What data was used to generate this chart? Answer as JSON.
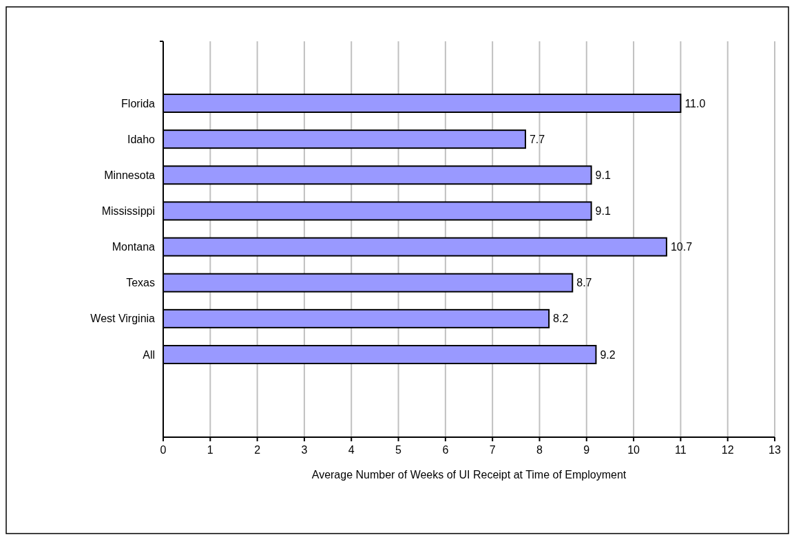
{
  "chart_data": {
    "type": "bar",
    "orientation": "horizontal",
    "xlabel": "Average Number of Weeks of UI Receipt at Time of Employment",
    "categories": [
      "Florida",
      "Idaho",
      "Minnesota",
      "Mississippi",
      "Montana",
      "Texas",
      "West Virginia",
      "All"
    ],
    "values": [
      11.0,
      7.7,
      9.1,
      9.1,
      10.7,
      8.7,
      8.2,
      9.2
    ],
    "value_labels": [
      "11.0",
      "7.7",
      "9.1",
      "9.1",
      "10.7",
      "8.7",
      "8.2",
      "9.2"
    ],
    "color": "#9999ff",
    "xlim": [
      0,
      13
    ],
    "xticks": [
      0,
      1,
      2,
      3,
      4,
      5,
      6,
      7,
      8,
      9,
      10,
      11,
      12,
      13
    ],
    "grid": "x"
  }
}
